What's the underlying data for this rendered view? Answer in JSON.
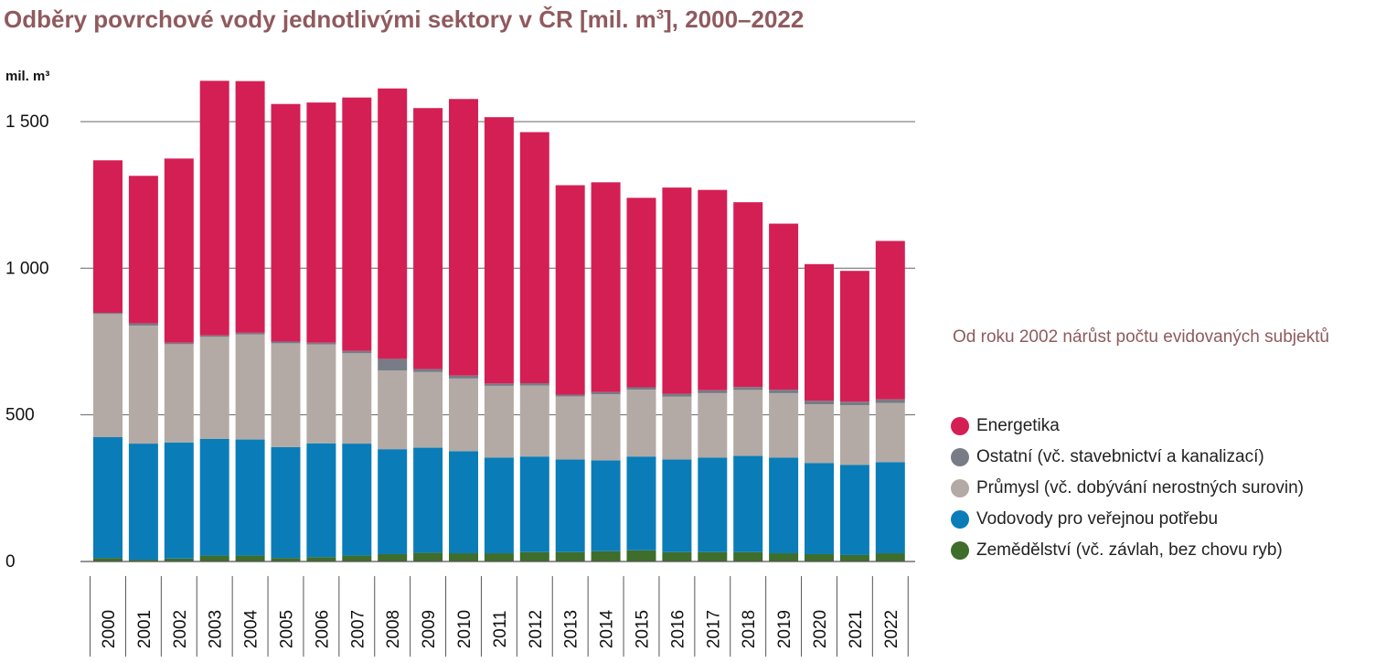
{
  "title": {
    "text": "Odběry povrchové vody jednotlivými sektory v ČR [mil. m",
    "superscript": "3",
    "suffix": "], 2000–2022"
  },
  "note": "Od roku 2002 nárůst počtu evidovaných subjektů",
  "colors": {
    "title": "#8f5a5e",
    "energetika": "#d41f55",
    "ostatni": "#777c86",
    "prumysl": "#b3aaa5",
    "vodovody": "#0a7db8",
    "zemedelstvi": "#3e6d2c",
    "grid": "#666666"
  },
  "legend": [
    {
      "key": "energetika",
      "label": "Energetika",
      "color": "#d41f55"
    },
    {
      "key": "ostatni",
      "label": "Ostatní (vč. stavebnictví a kanalizací)",
      "color": "#777c86"
    },
    {
      "key": "prumysl",
      "label": "Průmysl (vč. dobývání nerostných surovin)",
      "color": "#b3aaa5"
    },
    {
      "key": "vodovody",
      "label": "Vodovody pro veřejnou potřebu",
      "color": "#0a7db8"
    },
    {
      "key": "zemedelstvi",
      "label": "Zemědělství (vč. závlah, bez chovu ryb)",
      "color": "#3e6d2c"
    }
  ],
  "chart_data": {
    "type": "bar",
    "stacked": true,
    "ylabel": "mil. m³",
    "ylim": [
      0,
      1650
    ],
    "yticks": [
      0,
      500,
      1000,
      1500
    ],
    "ytick_labels": [
      "0",
      "500",
      "1 000",
      "1 500"
    ],
    "grid": true,
    "legend_position": "right",
    "categories": [
      "2000",
      "2001",
      "2002",
      "2003",
      "2004",
      "2005",
      "2006",
      "2007",
      "2008",
      "2009",
      "2010",
      "2011",
      "2012",
      "2013",
      "2014",
      "2015",
      "2016",
      "2017",
      "2018",
      "2019",
      "2020",
      "2021",
      "2022"
    ],
    "series": [
      {
        "name": "Zemědělství (vč. závlah, bez chovu ryb)",
        "key": "zemedelstvi",
        "values": [
          12,
          6,
          10,
          20,
          20,
          12,
          15,
          20,
          25,
          30,
          28,
          28,
          32,
          32,
          35,
          38,
          32,
          32,
          32,
          28,
          25,
          22,
          28
        ]
      },
      {
        "name": "Vodovody pro veřejnou potřebu",
        "key": "vodovody",
        "values": [
          412,
          396,
          396,
          398,
          396,
          378,
          388,
          382,
          358,
          358,
          348,
          326,
          326,
          316,
          310,
          320,
          316,
          322,
          328,
          326,
          311,
          307,
          311
        ]
      },
      {
        "name": "Průmysl (vč. dobývání nerostných surovin)",
        "key": "prumysl",
        "values": [
          420,
          402,
          335,
          348,
          358,
          354,
          337,
          308,
          268,
          258,
          248,
          245,
          242,
          215,
          225,
          228,
          214,
          220,
          225,
          220,
          200,
          204,
          202
        ]
      },
      {
        "name": "Ostatní (vč. stavebnictví a kanalizací)",
        "key": "ostatni",
        "values": [
          4,
          8,
          5,
          5,
          6,
          6,
          6,
          8,
          40,
          10,
          10,
          8,
          8,
          6,
          8,
          8,
          10,
          10,
          10,
          12,
          12,
          12,
          12
        ]
      },
      {
        "name": "Energetika",
        "key": "energetika",
        "values": [
          520,
          503,
          628,
          868,
          858,
          810,
          819,
          864,
          922,
          890,
          943,
          908,
          856,
          714,
          715,
          646,
          703,
          683,
          630,
          566,
          466,
          446,
          540
        ]
      }
    ]
  }
}
